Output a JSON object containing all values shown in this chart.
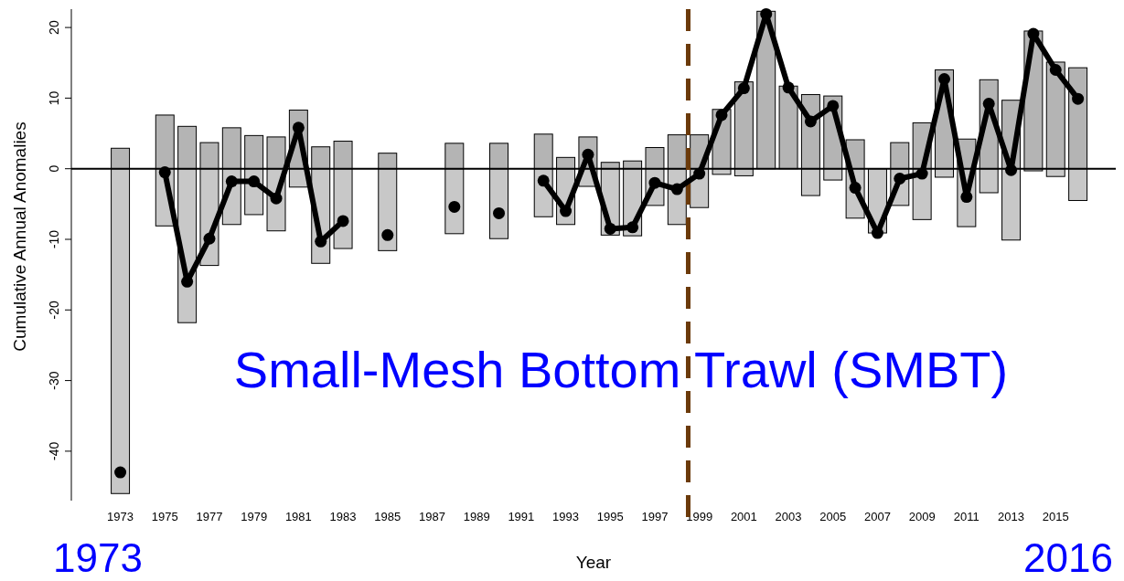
{
  "chart_data": {
    "type": "bar",
    "stacked": true,
    "title": "Small-Mesh Bottom Trawl (SMBT)",
    "xlabel": "Year",
    "ylabel": "Cumulative Annual Anomalies",
    "annotations": [
      "1973",
      "2016"
    ],
    "x": [
      1973,
      1974,
      1975,
      1976,
      1977,
      1978,
      1979,
      1980,
      1981,
      1982,
      1983,
      1984,
      1985,
      1986,
      1987,
      1988,
      1989,
      1990,
      1991,
      1992,
      1993,
      1994,
      1995,
      1996,
      1997,
      1998,
      1999,
      2000,
      2001,
      2002,
      2003,
      2004,
      2005,
      2006,
      2007,
      2008,
      2009,
      2010,
      2011,
      2012,
      2013,
      2014,
      2015,
      2016
    ],
    "series": [
      {
        "color": "#b4b4b4",
        "values": [
          2.9,
          null,
          7.6,
          6.0,
          3.7,
          5.8,
          4.7,
          4.5,
          8.3,
          3.1,
          3.9,
          null,
          2.2,
          null,
          null,
          3.6,
          null,
          3.6,
          null,
          4.9,
          1.6,
          4.5,
          0.9,
          1.1,
          3.0,
          4.8,
          4.8,
          8.4,
          12.3,
          22.3,
          11.7,
          10.5,
          10.3,
          4.1,
          0,
          3.7,
          6.5,
          14.0,
          4.2,
          12.6,
          9.7,
          19.5,
          15.1,
          14.3
        ]
      },
      {
        "color": "#c8c8c8",
        "values": [
          -46.0,
          null,
          -8.1,
          -21.8,
          -13.7,
          -7.9,
          -6.5,
          -8.8,
          -2.6,
          -13.4,
          -11.3,
          null,
          -11.6,
          null,
          null,
          -9.2,
          null,
          -9.9,
          null,
          -6.8,
          -7.9,
          -2.5,
          -9.4,
          -9.5,
          -5.2,
          -7.9,
          -5.5,
          -0.8,
          -1.0,
          null,
          null,
          -3.8,
          -1.6,
          -7.0,
          -9.1,
          -5.2,
          -7.2,
          -1.2,
          -8.2,
          -3.4,
          -10.1,
          -0.3,
          -1.1,
          -4.5
        ]
      },
      {
        "type": "line",
        "color": "#000000",
        "values": [
          -43.0,
          null,
          -0.5,
          -16.0,
          -9.9,
          -1.8,
          -1.8,
          -4.2,
          5.8,
          -10.3,
          -7.4,
          null,
          -9.4,
          null,
          null,
          -5.4,
          null,
          -6.3,
          null,
          -1.7,
          -6.0,
          2.0,
          -8.5,
          -8.3,
          -2.0,
          -2.9,
          -0.7,
          7.6,
          11.4,
          21.9,
          11.5,
          6.7,
          8.9,
          -2.7,
          -9.1,
          -1.4,
          -0.7,
          12.7,
          -4.0,
          9.2,
          -0.2,
          19.1,
          14.0,
          9.9
        ]
      }
    ],
    "marker": "circle",
    "line_style": "solid",
    "xlim": [
      1970.8,
      2017.7
    ],
    "ylim": [
      -47,
      22.6
    ],
    "xticks": [
      1973,
      1975,
      1977,
      1979,
      1981,
      1983,
      1985,
      1987,
      1989,
      1991,
      1993,
      1995,
      1997,
      1999,
      2001,
      2003,
      2005,
      2007,
      2009,
      2011,
      2013,
      2015
    ],
    "yticks": [
      -40,
      -30,
      -20,
      -10,
      0,
      10,
      20
    ],
    "ref_lines": [
      {
        "axis": "y",
        "value": 0,
        "color": "#000000",
        "line_style": "solid"
      },
      {
        "axis": "x",
        "value": 1998.5,
        "color": "#6b3a0a",
        "line_style": "dashed"
      }
    ]
  }
}
